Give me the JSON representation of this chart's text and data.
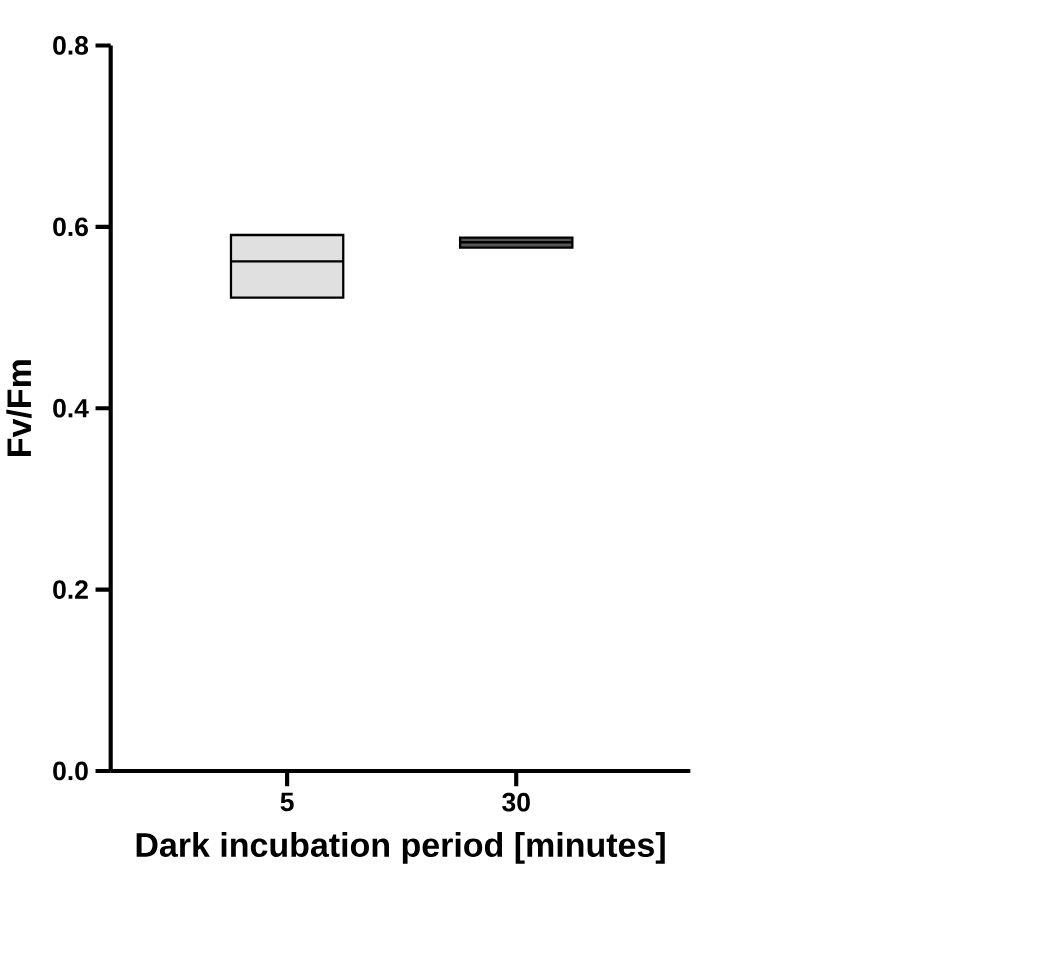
{
  "chart_data": {
    "type": "box",
    "xlabel": "Dark incubation period [minutes]",
    "ylabel": "Fv/Fm",
    "categories": [
      "5",
      "30"
    ],
    "boxes": [
      {
        "low": 0.522,
        "q1": 0.522,
        "median": 0.562,
        "q3": 0.591,
        "high": 0.591
      },
      {
        "low": 0.577,
        "q1": 0.577,
        "median": 0.583,
        "q3": 0.588,
        "high": 0.588
      }
    ],
    "colors": [
      "#e0e0e0",
      "#555555"
    ],
    "ylim": [
      0,
      0.8
    ],
    "yticks": [
      {
        "value": 0,
        "label": "0.0"
      },
      {
        "value": 0.2,
        "label": "0.2"
      },
      {
        "value": 0.4,
        "label": "0.4"
      },
      {
        "value": 0.6,
        "label": "0.6"
      },
      {
        "value": 0.8,
        "label": "0.8"
      }
    ]
  }
}
